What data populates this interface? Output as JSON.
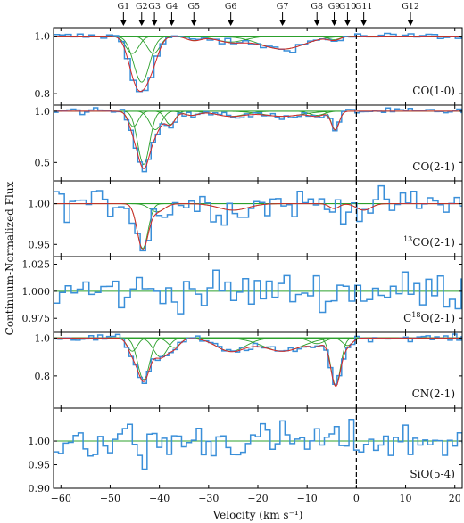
{
  "chart_data": {
    "type": "line",
    "xlabel": "Velocity (km s⁻¹)",
    "ylabel": "Continuum-Normalized Flux",
    "xlim": [
      -61.5,
      21.5
    ],
    "xticks": [
      -60,
      -50,
      -40,
      -30,
      -20,
      -10,
      0,
      10,
      20
    ],
    "zero_line_x": 0,
    "colors": {
      "data": "#3a8fd9",
      "total_fit": "#d62728",
      "components": "#2ca02c",
      "zero_line": "#000000"
    },
    "components": [
      {
        "label": "G1",
        "velocity": -47.3
      },
      {
        "label": "G2",
        "velocity": -43.6
      },
      {
        "label": "G3",
        "velocity": -41.0
      },
      {
        "label": "G4",
        "velocity": -37.5
      },
      {
        "label": "G5",
        "velocity": -33.0
      },
      {
        "label": "G6",
        "velocity": -25.5
      },
      {
        "label": "G7",
        "velocity": -15.0
      },
      {
        "label": "G8",
        "velocity": -8.0
      },
      {
        "label": "G9",
        "velocity": -4.5
      },
      {
        "label": "G10",
        "velocity": -1.8
      },
      {
        "label": "G11",
        "velocity": 1.5
      },
      {
        "label": "G12",
        "velocity": 11.0
      }
    ],
    "panels": [
      {
        "name": "CO(1-0)",
        "label_main": "CO(1-0)",
        "label_sup": "",
        "label_rest": "",
        "ylim": [
          0.76,
          1.03
        ],
        "yticks": [
          0.8,
          1.0
        ],
        "ytick_labels": [
          "0.8",
          "1.0"
        ],
        "has_fit": true,
        "noise": 0.006,
        "step": 1.2,
        "components": [
          {
            "v": -43.6,
            "depth": 0.16,
            "sigma": 1.6
          },
          {
            "v": -45.5,
            "depth": 0.06,
            "sigma": 1.3
          },
          {
            "v": -41.2,
            "depth": 0.06,
            "sigma": 1.3
          },
          {
            "v": -33.0,
            "depth": 0.015,
            "sigma": 1.5
          },
          {
            "v": -15.0,
            "depth": 0.045,
            "sigma": 4.5
          },
          {
            "v": -25.5,
            "depth": 0.02,
            "sigma": 3.0
          },
          {
            "v": -4.5,
            "depth": 0.012,
            "sigma": 1.2
          }
        ]
      },
      {
        "name": "CO(2-1)",
        "label_main": "CO(2-1)",
        "label_sup": "",
        "label_rest": "",
        "ylim": [
          0.32,
          1.06
        ],
        "yticks": [
          0.5,
          1.0
        ],
        "ytick_labels": [
          "0.5",
          "1.0"
        ],
        "has_fit": true,
        "noise": 0.015,
        "step": 0.9,
        "components": [
          {
            "v": -43.2,
            "depth": 0.52,
            "sigma": 1.2
          },
          {
            "v": -45.3,
            "depth": 0.15,
            "sigma": 1.0
          },
          {
            "v": -40.8,
            "depth": 0.18,
            "sigma": 1.2
          },
          {
            "v": -37.8,
            "depth": 0.13,
            "sigma": 1.0
          },
          {
            "v": -33.5,
            "depth": 0.04,
            "sigma": 1.5
          },
          {
            "v": -25.5,
            "depth": 0.05,
            "sigma": 3.0
          },
          {
            "v": -15.0,
            "depth": 0.05,
            "sigma": 4.0
          },
          {
            "v": -8.0,
            "depth": 0.04,
            "sigma": 1.5
          },
          {
            "v": -4.3,
            "depth": 0.18,
            "sigma": 0.8
          }
        ]
      },
      {
        "name": "13CO(2-1)",
        "label_main": "",
        "label_sup": "13",
        "label_rest": "CO(2-1)",
        "ylim": [
          0.935,
          1.028
        ],
        "yticks": [
          0.95,
          1.0
        ],
        "ytick_labels": [
          "0.95",
          "1.00"
        ],
        "has_fit": true,
        "noise": 0.009,
        "step": 1.1,
        "components": [
          {
            "v": -43.4,
            "depth": 0.055,
            "sigma": 1.1
          },
          {
            "v": -40.5,
            "depth": 0.01,
            "sigma": 1.5
          },
          {
            "v": -25.0,
            "depth": 0.008,
            "sigma": 3.0
          },
          {
            "v": -4.5,
            "depth": 0.006,
            "sigma": 1.0
          },
          {
            "v": 1.5,
            "depth": 0.008,
            "sigma": 1.5
          }
        ]
      },
      {
        "name": "C18O(2-1)",
        "label_main": "C",
        "label_sup": "18",
        "label_rest": "O(2-1)",
        "ylim": [
          0.962,
          1.032
        ],
        "yticks": [
          0.975,
          1.0,
          1.025
        ],
        "ytick_labels": [
          "0.975",
          "1.000",
          "1.025"
        ],
        "has_fit": false,
        "noise": 0.009,
        "step": 1.2,
        "components": []
      },
      {
        "name": "CN(2-1)",
        "label_main": "CN(2-1)",
        "label_sup": "",
        "label_rest": "",
        "ylim": [
          0.63,
          1.03
        ],
        "yticks": [
          0.8,
          1.0
        ],
        "ytick_labels": [
          "0.8",
          "1.0"
        ],
        "has_fit": true,
        "noise": 0.008,
        "step": 0.9,
        "components": [
          {
            "v": -43.2,
            "depth": 0.22,
            "sigma": 1.2
          },
          {
            "v": -45.5,
            "depth": 0.07,
            "sigma": 1.0
          },
          {
            "v": -39.8,
            "depth": 0.1,
            "sigma": 1.4
          },
          {
            "v": -37.0,
            "depth": 0.05,
            "sigma": 1.2
          },
          {
            "v": -25.5,
            "depth": 0.07,
            "sigma": 3.0
          },
          {
            "v": -15.0,
            "depth": 0.07,
            "sigma": 4.0
          },
          {
            "v": -8.0,
            "depth": 0.03,
            "sigma": 1.5
          },
          {
            "v": -4.2,
            "depth": 0.25,
            "sigma": 1.0
          },
          {
            "v": -1.8,
            "depth": 0.04,
            "sigma": 1.0
          }
        ]
      },
      {
        "name": "SiO(5-4)",
        "label_main": "SiO(5-4)",
        "label_sup": "",
        "label_rest": "",
        "ylim": [
          0.9,
          1.07
        ],
        "yticks": [
          0.9,
          0.95,
          1.0
        ],
        "ytick_labels": [
          "0.90",
          "0.95",
          "1.00"
        ],
        "has_fit": false,
        "noise": 0.02,
        "step": 1.0,
        "components": [
          {
            "v": -43.4,
            "depth": 0.06,
            "sigma": 0.5
          }
        ]
      }
    ]
  }
}
